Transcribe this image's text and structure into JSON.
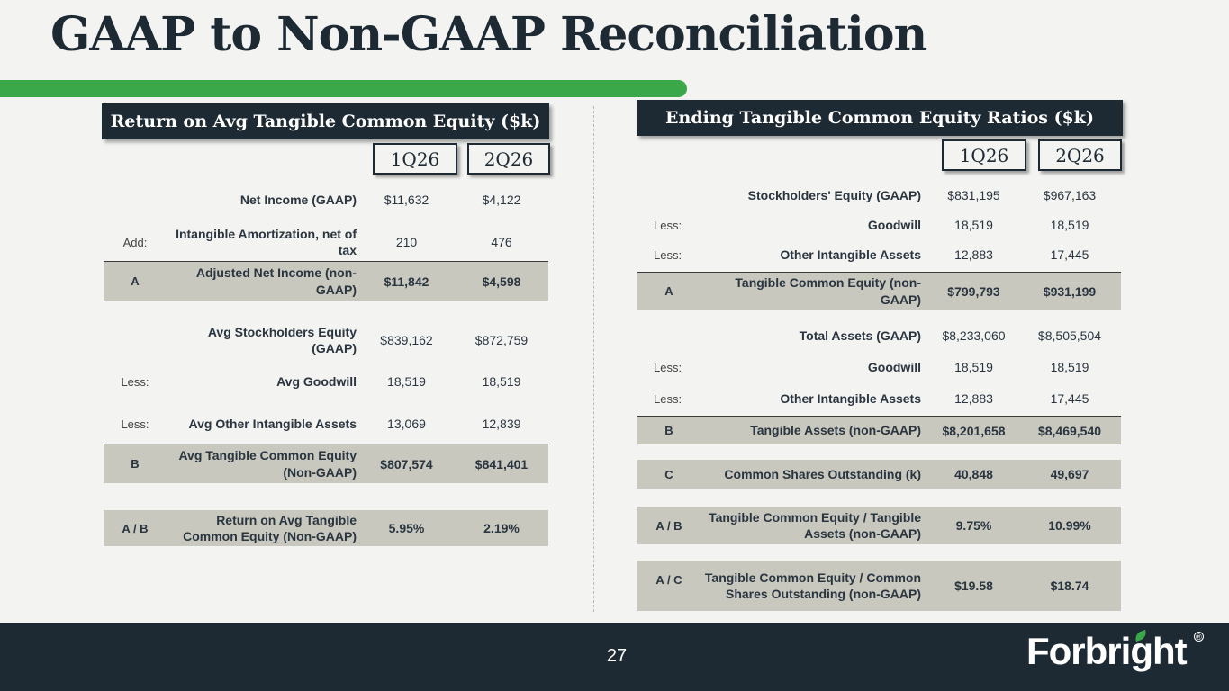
{
  "title": "GAAP to Non-GAAP Reconciliation",
  "page_number": "27",
  "logo_text": "Forbright",
  "logo_reg": "®",
  "left": {
    "heading": "Return on Avg Tangible Common Equity ($k)",
    "col1": "1Q26",
    "col2": "2Q26",
    "rows": [
      {
        "pre": "",
        "label": "Net Income (GAAP)",
        "v1": "$11,632",
        "v2": "$4,122"
      },
      {
        "pre": "Add:",
        "label": "Intangible Amortization, net of tax",
        "v1": "210",
        "v2": "476"
      },
      {
        "pre": "A",
        "label": "Adjusted Net Income (non-GAAP)",
        "v1": "$11,842",
        "v2": "$4,598"
      },
      {
        "pre": "",
        "label": "Avg Stockholders Equity (GAAP)",
        "v1": "$839,162",
        "v2": "$872,759"
      },
      {
        "pre": "Less:",
        "label": "Avg Goodwill",
        "v1": "18,519",
        "v2": "18,519"
      },
      {
        "pre": "Less:",
        "label": "Avg Other Intangible Assets",
        "v1": "13,069",
        "v2": "12,839"
      },
      {
        "pre": "B",
        "label": "Avg Tangible Common Equity (Non-GAAP)",
        "v1": "$807,574",
        "v2": "$841,401"
      },
      {
        "pre": "A / B",
        "label": "Return on Avg Tangible Common Equity (Non-GAAP)",
        "v1": "5.95%",
        "v2": "2.19%"
      }
    ]
  },
  "right": {
    "heading": "Ending Tangible Common Equity Ratios ($k)",
    "col1": "1Q26",
    "col2": "2Q26",
    "rows": [
      {
        "pre": "",
        "label": "Stockholders' Equity (GAAP)",
        "v1": "$831,195",
        "v2": "$967,163"
      },
      {
        "pre": "Less:",
        "label": "Goodwill",
        "v1": "18,519",
        "v2": "18,519"
      },
      {
        "pre": "Less:",
        "label": "Other Intangible Assets",
        "v1": "12,883",
        "v2": "17,445"
      },
      {
        "pre": "A",
        "label": "Tangible Common Equity (non-GAAP)",
        "v1": "$799,793",
        "v2": "$931,199"
      },
      {
        "pre": "",
        "label": "Total Assets (GAAP)",
        "v1": "$8,233,060",
        "v2": "$8,505,504"
      },
      {
        "pre": "Less:",
        "label": "Goodwill",
        "v1": "18,519",
        "v2": "18,519"
      },
      {
        "pre": "Less:",
        "label": "Other Intangible Assets",
        "v1": "12,883",
        "v2": "17,445"
      },
      {
        "pre": "B",
        "label": "Tangible Assets (non-GAAP)",
        "v1": "$8,201,658",
        "v2": "$8,469,540"
      },
      {
        "pre": "C",
        "label": "Common Shares Outstanding (k)",
        "v1": "40,848",
        "v2": "49,697"
      },
      {
        "pre": "A / B",
        "label": "Tangible Common Equity / Tangible Assets (non-GAAP)",
        "v1": "9.75%",
        "v2": "10.99%"
      },
      {
        "pre": "A / C",
        "label": "Tangible Common Equity / Common Shares Outstanding (non-GAAP)",
        "v1": "$19.58",
        "v2": "$18.74"
      }
    ]
  }
}
